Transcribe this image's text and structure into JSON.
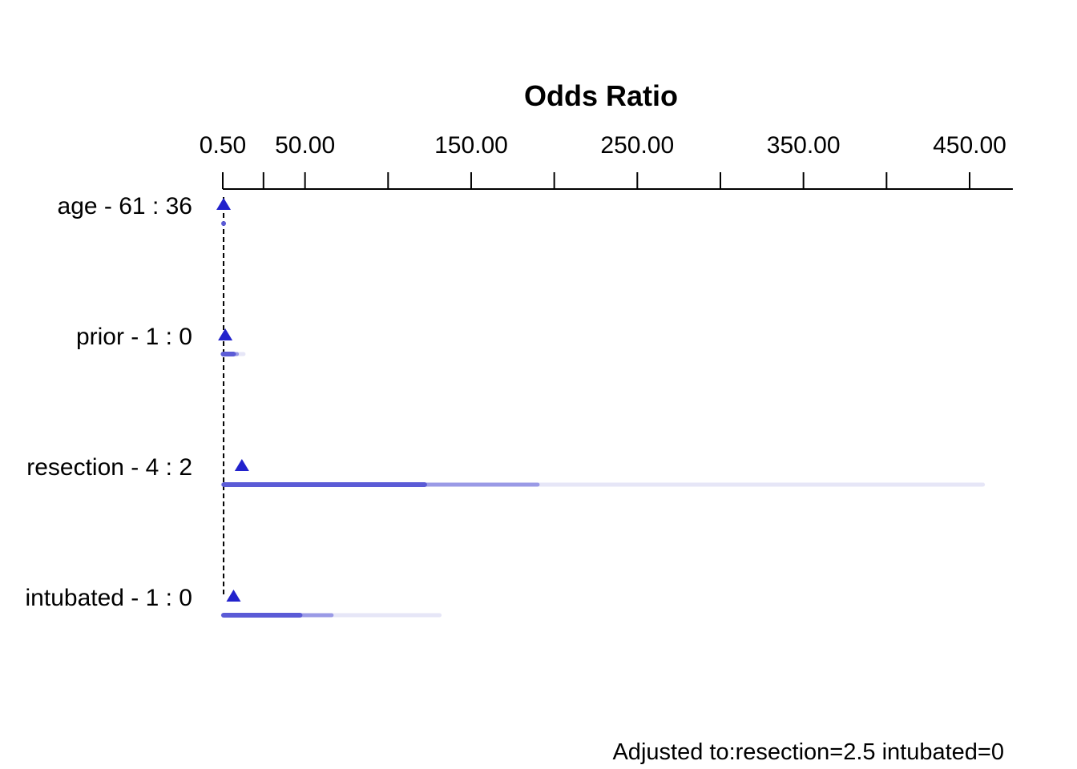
{
  "chart_data": {
    "type": "interval",
    "title": "Odds Ratio",
    "x_axis": {
      "scale": "linear",
      "range": [
        0.5,
        476
      ],
      "tick_values": [
        0.5,
        25,
        50,
        100,
        150,
        200,
        250,
        300,
        350,
        400,
        450
      ],
      "labeled_ticks": [
        {
          "value": 0.5,
          "label": "0.50"
        },
        {
          "value": 50,
          "label": "50.00"
        },
        {
          "value": 150,
          "label": "150.00"
        },
        {
          "value": 250,
          "label": "250.00"
        },
        {
          "value": 350,
          "label": "350.00"
        },
        {
          "value": 450,
          "label": "450.00"
        }
      ]
    },
    "reference_value": 1,
    "confidence_levels": [
      "0.9",
      "0.95",
      "0.99"
    ],
    "colors": {
      "point": "#2222cc",
      "ci_90": "#5b5bd6",
      "ci_95": "#9a9ae6",
      "ci_99": "#e6e6f7",
      "reference_line": "#000000",
      "axis": "#000000"
    },
    "rows": [
      {
        "label": "age - 61 : 36",
        "estimate": 1.0,
        "ci_90": [
          0.99,
          1.01
        ],
        "ci_95": [
          0.98,
          1.02
        ],
        "ci_99": [
          0.97,
          1.03
        ]
      },
      {
        "label": "prior - 1 : 0",
        "estimate": 2.0,
        "ci_90": [
          0.7,
          7.0
        ],
        "ci_95": [
          0.6,
          9.0
        ],
        "ci_99": [
          0.5,
          13.0
        ]
      },
      {
        "label": "resection - 4 : 2",
        "estimate": 12.0,
        "ci_90": [
          1.3,
          122.0
        ],
        "ci_95": [
          0.8,
          190.0
        ],
        "ci_99": [
          0.5,
          458.0
        ]
      },
      {
        "label": "intubated - 1 : 0",
        "estimate": 7.0,
        "ci_90": [
          1.0,
          47.0
        ],
        "ci_95": [
          0.8,
          66.0
        ],
        "ci_99": [
          0.5,
          131.0
        ]
      }
    ],
    "note": "Adjusted to:resection=2.5 intubated=0"
  }
}
